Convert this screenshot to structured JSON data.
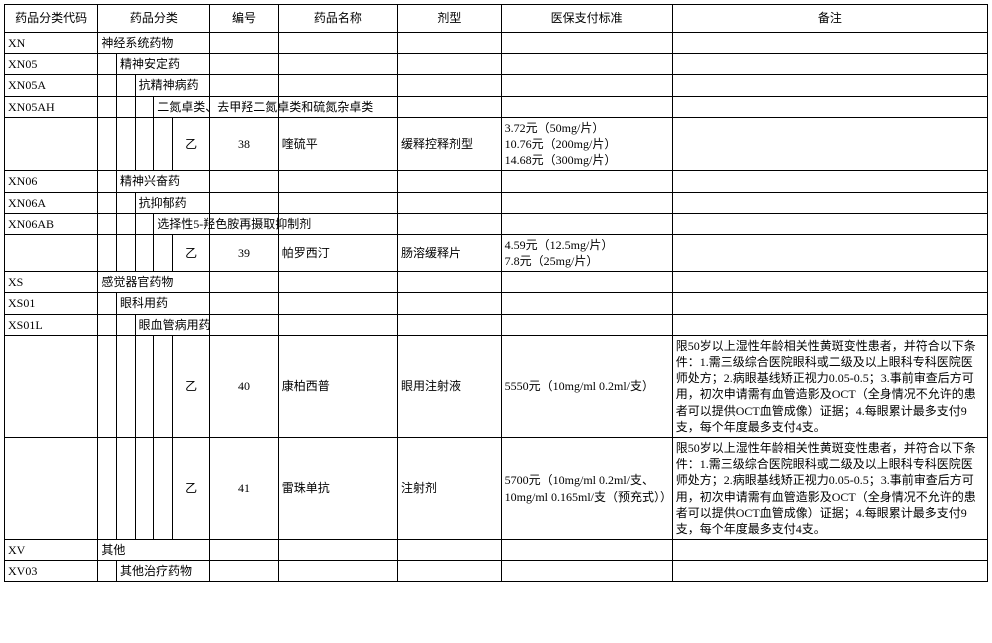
{
  "table": {
    "border_color": "#000000",
    "background_color": "#ffffff",
    "text_color": "#000000",
    "font_family": "SimSun",
    "font_size_pt": 9,
    "columns": {
      "code": "药品分类代码",
      "category": "药品分类",
      "num": "编号",
      "name": "药品名称",
      "form": "剂型",
      "standard": "医保支付标准",
      "note": "备注"
    },
    "rows": [
      {
        "code": "XN",
        "indent": 0,
        "cat": "神经系统药物"
      },
      {
        "code": "XN05",
        "indent": 1,
        "cat": "精神安定药"
      },
      {
        "code": "XN05A",
        "indent": 2,
        "cat": "抗精神病药"
      },
      {
        "code": "XN05AH",
        "indent": 3,
        "cat": "二氮卓类、去甲羟二氮卓类和硫氮杂卓类"
      },
      {
        "drug": true,
        "cls": "乙",
        "num": "38",
        "name": "喹硫平",
        "form": "缓释控释剂型",
        "standard": "3.72元（50mg/片）\n10.76元（200mg/片）\n14.68元（300mg/片）",
        "note": ""
      },
      {
        "code": "XN06",
        "indent": 1,
        "cat": "精神兴奋药"
      },
      {
        "code": "XN06A",
        "indent": 2,
        "cat": "抗抑郁药"
      },
      {
        "code": "XN06AB",
        "indent": 3,
        "cat": "选择性5-羟色胺再摄取抑制剂"
      },
      {
        "drug": true,
        "cls": "乙",
        "num": "39",
        "name": "帕罗西汀",
        "form": "肠溶缓释片",
        "standard": "4.59元（12.5mg/片）\n7.8元（25mg/片）",
        "note": ""
      },
      {
        "code": "XS",
        "indent": 0,
        "cat": "感觉器官药物"
      },
      {
        "code": "XS01",
        "indent": 1,
        "cat": "眼科用药"
      },
      {
        "code": "XS01L",
        "indent": 2,
        "cat": "眼血管病用药"
      },
      {
        "drug": true,
        "cls": "乙",
        "num": "40",
        "name": "康柏西普",
        "form": "眼用注射液",
        "standard": "5550元（10mg/ml 0.2ml/支）",
        "note": "限50岁以上湿性年龄相关性黄斑变性患者，并符合以下条件：1.需三级综合医院眼科或二级及以上眼科专科医院医师处方；2.病眼基线矫正视力0.05-0.5；3.事前审查后方可用，初次申请需有血管造影及OCT（全身情况不允许的患者可以提供OCT血管成像）证据；4.每眼累计最多支付9支，每个年度最多支付4支。"
      },
      {
        "drug": true,
        "cls": "乙",
        "num": "41",
        "name": "雷珠单抗",
        "form": "注射剂",
        "standard": "5700元（10mg/ml 0.2ml/支、10mg/ml 0.165ml/支（预充式））",
        "note": "限50岁以上湿性年龄相关性黄斑变性患者，并符合以下条件：1.需三级综合医院眼科或二级及以上眼科专科医院医师处方；2.病眼基线矫正视力0.05-0.5；3.事前审查后方可用，初次申请需有血管造影及OCT（全身情况不允许的患者可以提供OCT血管成像）证据；4.每眼累计最多支付9支，每个年度最多支付4支。"
      },
      {
        "code": "XV",
        "indent": 0,
        "cat": "其他"
      },
      {
        "code": "XV03",
        "indent": 1,
        "cat": "其他治疗药物"
      }
    ]
  }
}
